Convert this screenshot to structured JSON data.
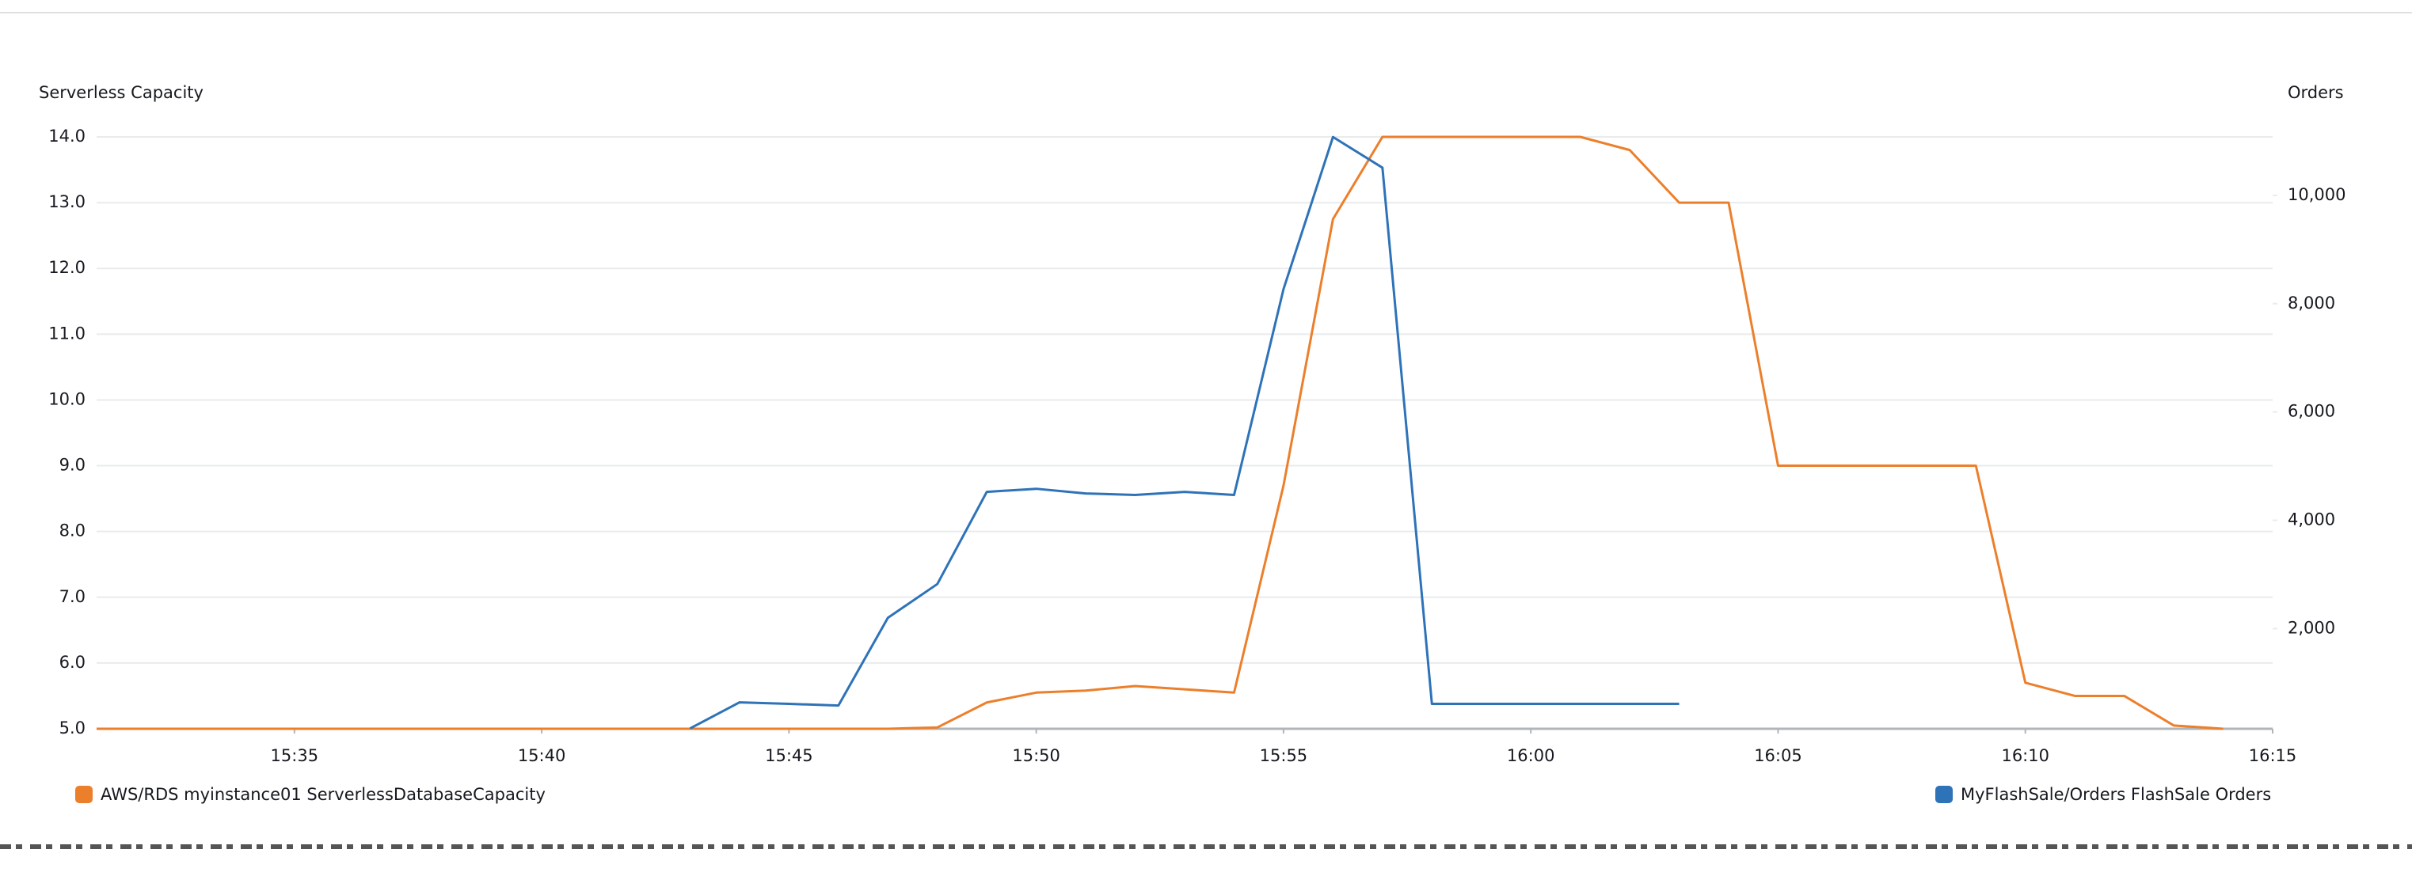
{
  "chart_data": {
    "type": "line",
    "y_label": "Serverless Capacity",
    "y2_label": "Orders",
    "x": [
      "15:31",
      "15:32",
      "15:33",
      "15:34",
      "15:35",
      "15:36",
      "15:37",
      "15:38",
      "15:39",
      "15:40",
      "15:41",
      "15:42",
      "15:43",
      "15:44",
      "15:45",
      "15:46",
      "15:47",
      "15:48",
      "15:49",
      "15:50",
      "15:51",
      "15:52",
      "15:53",
      "15:54",
      "15:55",
      "15:56",
      "15:57",
      "15:58",
      "15:59",
      "16:00",
      "16:01",
      "16:02",
      "16:03",
      "16:04",
      "16:05",
      "16:06",
      "16:07",
      "16:08",
      "16:09",
      "16:10",
      "16:11",
      "16:12",
      "16:13",
      "16:14"
    ],
    "xlim": [
      "15:31",
      "16:15"
    ],
    "xticks": [
      "15:35",
      "15:40",
      "15:45",
      "15:50",
      "15:55",
      "16:00",
      "16:05",
      "16:10",
      "16:15"
    ],
    "ylim": [
      5.0,
      14.0
    ],
    "yticks": [
      {
        "value": 5,
        "label": "5.0"
      },
      {
        "value": 6,
        "label": "6.0"
      },
      {
        "value": 7,
        "label": "7.0"
      },
      {
        "value": 8,
        "label": "8.0"
      },
      {
        "value": 9,
        "label": "9.0"
      },
      {
        "value": 10,
        "label": "10.0"
      },
      {
        "value": 11,
        "label": "11.0"
      },
      {
        "value": 12,
        "label": "12.0"
      },
      {
        "value": 13,
        "label": "13.0"
      },
      {
        "value": 14,
        "label": "14.0"
      }
    ],
    "y2lim": [
      150,
      11080
    ],
    "y2ticks": [
      {
        "value": 2000,
        "label": "2,000"
      },
      {
        "value": 4000,
        "label": "4,000"
      },
      {
        "value": 6000,
        "label": "6,000"
      },
      {
        "value": 8000,
        "label": "8,000"
      },
      {
        "value": 10000,
        "label": "10,000"
      }
    ],
    "grid": true,
    "series": [
      {
        "name": "AWS/RDS myinstance01 ServerlessDatabaseCapacity",
        "color": "#ec7f2b",
        "values": [
          5,
          5,
          5,
          5,
          5,
          5,
          5,
          5,
          5,
          5,
          5,
          5,
          5,
          5,
          5,
          5,
          5,
          5.02,
          5.4,
          5.55,
          5.58,
          5.65,
          5.6,
          5.55,
          8.7,
          12.75,
          14,
          14,
          14,
          14,
          14,
          13.8,
          13,
          13,
          9,
          9,
          9,
          9,
          9,
          5.7,
          5.5,
          5.5,
          5.05,
          5
        ]
      },
      {
        "name": "MyFlashSale/Orders FlashSale Orders",
        "color": "#2e73b8",
        "axis": "y2",
        "values": [
          null,
          null,
          null,
          null,
          null,
          null,
          null,
          null,
          null,
          null,
          null,
          null,
          156,
          638,
          610,
          580,
          2199,
          2823,
          4525,
          4582,
          4496,
          4468,
          4525,
          4468,
          8270,
          11078,
          10511,
          610,
          610,
          610,
          610,
          610,
          610,
          null,
          null,
          null,
          null,
          null,
          null,
          null,
          null,
          null,
          null,
          null
        ]
      }
    ]
  }
}
